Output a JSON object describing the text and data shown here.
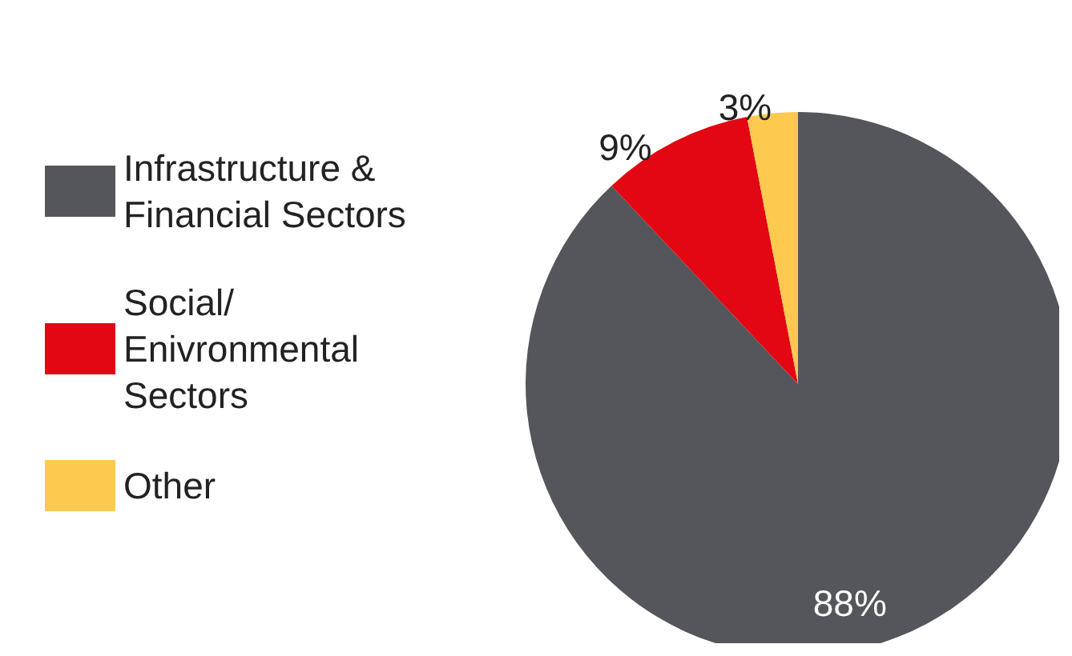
{
  "chart_data": {
    "type": "pie",
    "categories": [
      "Infrastructure & Financial Sectors",
      "Social/ Enivronmental Sectors",
      "Other"
    ],
    "values": [
      88,
      9,
      3
    ],
    "colors": [
      "#55565b",
      "#e30613",
      "#fdc94f"
    ],
    "value_labels": [
      "88%",
      "9%",
      "3%"
    ],
    "legend": "left"
  }
}
